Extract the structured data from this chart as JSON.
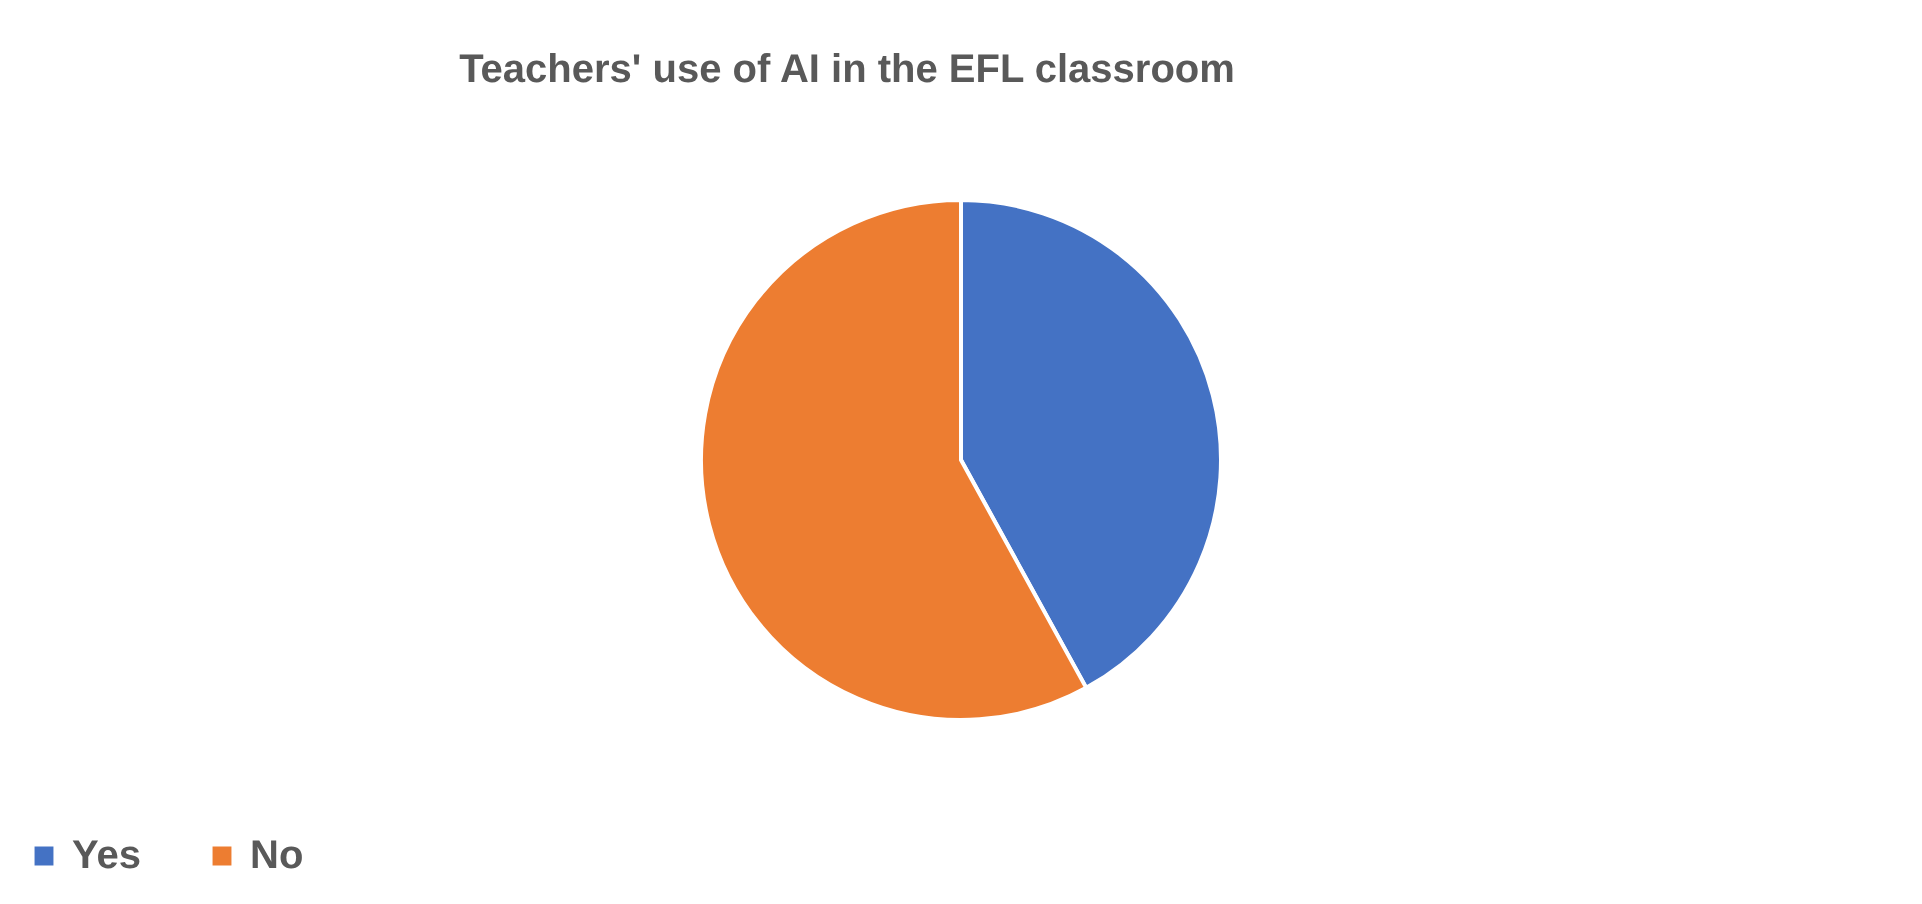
{
  "chart_data": {
    "type": "pie",
    "title": "Teachers' use of AI in the EFL classroom",
    "categories": [
      "Yes",
      "No"
    ],
    "values": [
      42,
      58
    ],
    "colors": [
      "#4472c4",
      "#ed7d31"
    ],
    "legend": "bottom"
  }
}
